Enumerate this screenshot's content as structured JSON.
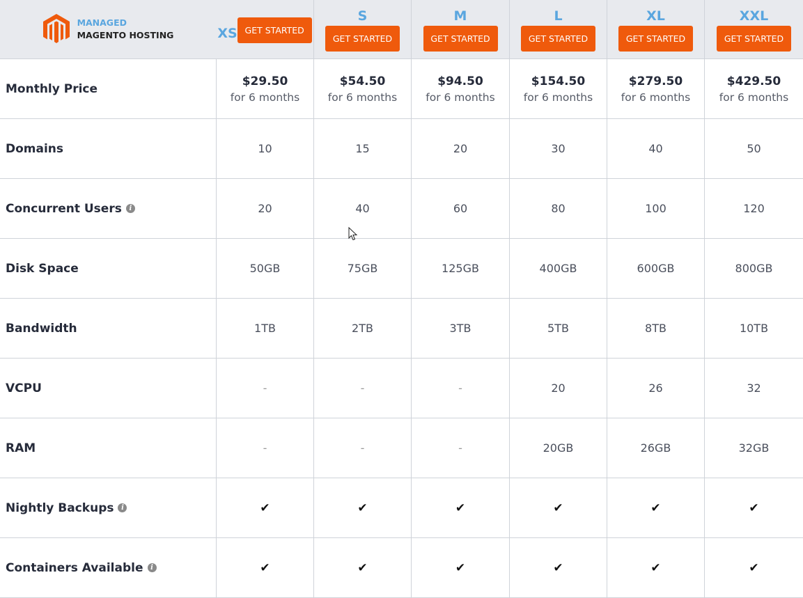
{
  "brand": {
    "line1": "MANAGED",
    "line2": "MAGENTO HOSTING",
    "logo": "magento-logo",
    "color": "#ef5a0c",
    "accent": "#5aa6df"
  },
  "plans": [
    {
      "name": "XS",
      "button": "GET STARTED",
      "price": "$29.50",
      "term": "for 6 months"
    },
    {
      "name": "S",
      "button": "GET STARTED",
      "price": "$54.50",
      "term": "for 6 months"
    },
    {
      "name": "M",
      "button": "GET STARTED",
      "price": "$94.50",
      "term": "for 6 months"
    },
    {
      "name": "L",
      "button": "GET STARTED",
      "price": "$154.50",
      "term": "for 6 months"
    },
    {
      "name": "XL",
      "button": "GET STARTED",
      "price": "$279.50",
      "term": "for 6 months"
    },
    {
      "name": "XXL",
      "button": "GET STARTED",
      "price": "$429.50",
      "term": "for 6 months"
    }
  ],
  "price_label": "Monthly Price",
  "rows": [
    {
      "label": "Domains",
      "info": false,
      "values": [
        "10",
        "15",
        "20",
        "30",
        "40",
        "50"
      ]
    },
    {
      "label": "Concurrent Users",
      "info": true,
      "values": [
        "20",
        "40",
        "60",
        "80",
        "100",
        "120"
      ]
    },
    {
      "label": "Disk Space",
      "info": false,
      "values": [
        "50GB",
        "75GB",
        "125GB",
        "400GB",
        "600GB",
        "800GB"
      ]
    },
    {
      "label": "Bandwidth",
      "info": false,
      "values": [
        "1TB",
        "2TB",
        "3TB",
        "5TB",
        "8TB",
        "10TB"
      ]
    },
    {
      "label": "VCPU",
      "info": false,
      "values": [
        "-",
        "-",
        "-",
        "20",
        "26",
        "32"
      ]
    },
    {
      "label": "RAM",
      "info": false,
      "values": [
        "-",
        "-",
        "-",
        "20GB",
        "26GB",
        "32GB"
      ]
    },
    {
      "label": "Nightly Backups",
      "info": true,
      "values": [
        "✔",
        "✔",
        "✔",
        "✔",
        "✔",
        "✔"
      ]
    },
    {
      "label": "Containers Available",
      "info": true,
      "values": [
        "✔",
        "✔",
        "✔",
        "✔",
        "✔",
        "✔"
      ]
    }
  ],
  "info_glyph": "i"
}
